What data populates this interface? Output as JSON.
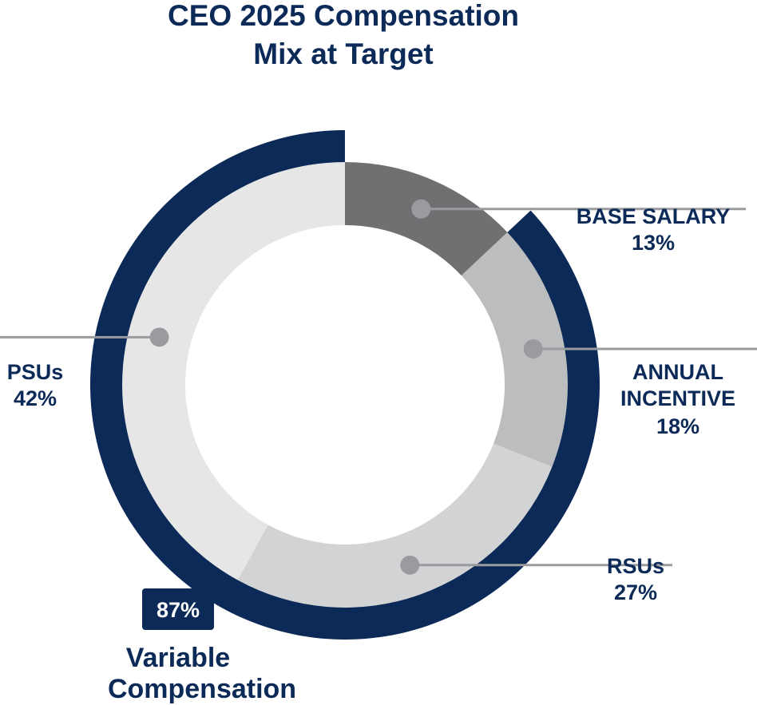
{
  "chart_data": {
    "type": "pie",
    "title": [
      "CEO 2025 Compensation",
      "Mix at Target"
    ],
    "slices": [
      {
        "name": "BASE SALARY",
        "value": 13,
        "value_label": "13%",
        "color": "#707073"
      },
      {
        "name": "ANNUAL INCENTIVE",
        "value": 18,
        "value_label": "18%",
        "color": "#bcbdbf"
      },
      {
        "name": "RSUs",
        "value": 27,
        "value_label": "27%",
        "color": "#d2d3d5"
      },
      {
        "name": "PSUs",
        "value": 42,
        "value_label": "42%",
        "color": "#e6e6e7"
      }
    ],
    "variable": {
      "value": 87,
      "label": "87%",
      "caption": [
        "Variable",
        "Compensation"
      ],
      "color": "#0b2a57"
    },
    "marker_color": "#9a9b9e",
    "leader_color": "#9a9b9e"
  }
}
